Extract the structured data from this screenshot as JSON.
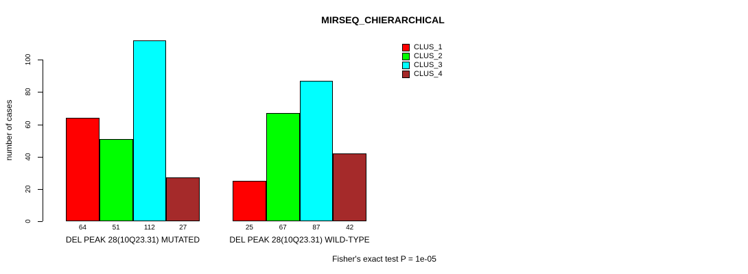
{
  "chart_data": {
    "type": "bar",
    "title": "MIRSEQ_CHIERARCHICAL",
    "ylabel": "number of cases",
    "xlabel": "",
    "categories": [
      "DEL PEAK 28(10Q23.31) MUTATED",
      "DEL PEAK 28(10Q23.31) WILD-TYPE"
    ],
    "series": [
      {
        "name": "CLUS_1",
        "color": "#ff0000",
        "values": [
          64,
          25
        ]
      },
      {
        "name": "CLUS_2",
        "color": "#00ff00",
        "values": [
          51,
          67
        ]
      },
      {
        "name": "CLUS_3",
        "color": "#00ffff",
        "values": [
          112,
          87
        ]
      },
      {
        "name": "CLUS_4",
        "color": "#a52a2a",
        "values": [
          27,
          42
        ]
      }
    ],
    "yticks": [
      0,
      20,
      40,
      60,
      80,
      100
    ],
    "ylim": [
      0,
      112
    ],
    "grid": false,
    "legend_position": "top-right",
    "bar_value_labels_shown": true,
    "annotation": "Fisher's exact test P = 1e-05"
  }
}
